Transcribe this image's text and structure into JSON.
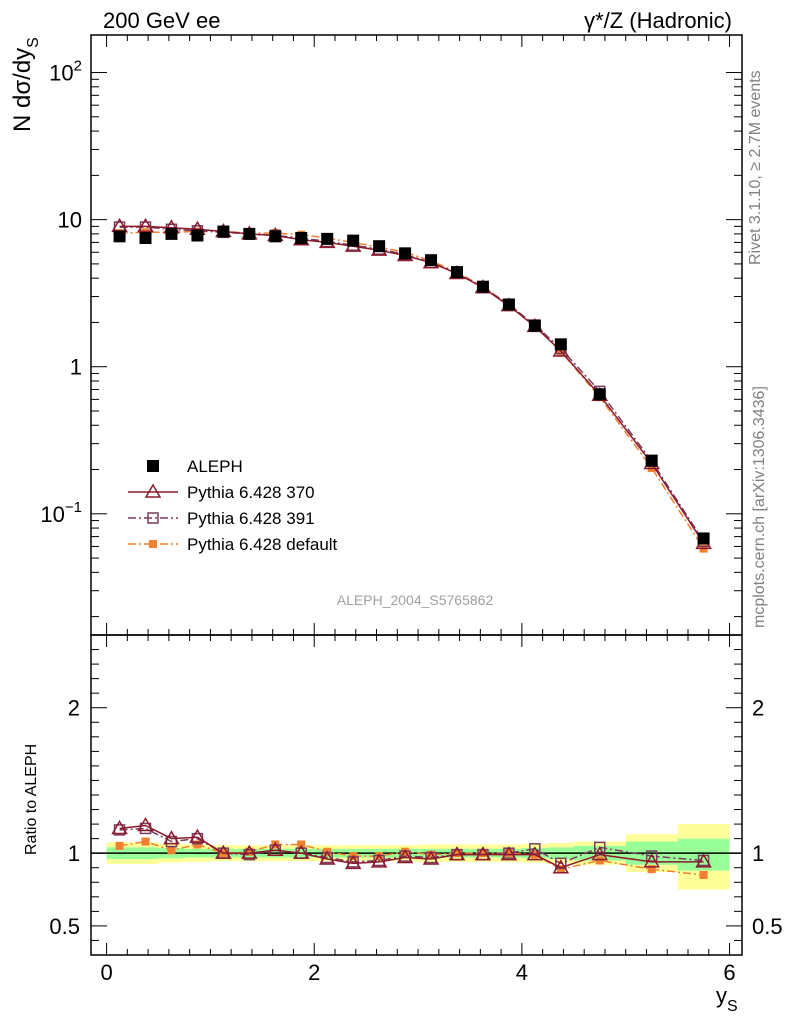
{
  "header": {
    "left_title": "200 GeV ee",
    "right_title": "γ*/Z (Hadronic)"
  },
  "side_labels": {
    "rivet": "Rivet 3.1.10, ≥ 2.7M events",
    "mcplots": "mcplots.cern.ch [arXiv:1306.3436]"
  },
  "watermark": "ALEPH_2004_S5765862",
  "chart_data": [
    {
      "type": "line",
      "panel": "main",
      "ylabel": "N dσ/dy_S",
      "yscale": "log",
      "xlim": [
        -0.15,
        6.12
      ],
      "ylim": [
        0.015,
        180
      ],
      "y_ticks": [
        {
          "value": 100,
          "base": "10",
          "exp": "2"
        },
        {
          "value": 10,
          "base": "10",
          "exp": ""
        },
        {
          "value": 1,
          "base": "1",
          "exp": ""
        },
        {
          "value": 0.1,
          "base": "10",
          "exp": "−1"
        }
      ],
      "legend_position": "bottom-left",
      "series": [
        {
          "name": "ALEPH",
          "color": "#000000",
          "marker": "filled-square",
          "line": "none",
          "x": [
            0.125,
            0.375,
            0.625,
            0.875,
            1.125,
            1.375,
            1.625,
            1.875,
            2.125,
            2.375,
            2.625,
            2.875,
            3.125,
            3.375,
            3.625,
            3.875,
            4.125,
            4.375,
            4.75,
            5.25,
            5.75
          ],
          "y": [
            7.7,
            7.5,
            8.0,
            7.8,
            8.3,
            8.0,
            7.7,
            7.5,
            7.4,
            7.2,
            6.6,
            5.9,
            5.3,
            4.4,
            3.5,
            2.65,
            1.9,
            1.42,
            0.65,
            0.23,
            0.068
          ]
        },
        {
          "name": "Pythia 6.428 370",
          "color": "#8b1a2e",
          "marker": "open-triangle",
          "line": "solid",
          "x": [
            0.125,
            0.375,
            0.625,
            0.875,
            1.125,
            1.375,
            1.625,
            1.875,
            2.125,
            2.375,
            2.625,
            2.875,
            3.125,
            3.375,
            3.625,
            3.875,
            4.125,
            4.375,
            4.75,
            5.25,
            5.75
          ],
          "y": [
            9.0,
            9.0,
            8.8,
            8.6,
            8.3,
            8.0,
            7.8,
            7.3,
            7.0,
            6.6,
            6.2,
            5.7,
            5.1,
            4.3,
            3.45,
            2.6,
            1.88,
            1.28,
            0.64,
            0.22,
            0.063
          ]
        },
        {
          "name": "Pythia 6.428 391",
          "color": "#7a3a5e",
          "marker": "open-square",
          "line": "dashdot",
          "x": [
            0.125,
            0.375,
            0.625,
            0.875,
            1.125,
            1.375,
            1.625,
            1.875,
            2.125,
            2.375,
            2.625,
            2.875,
            3.125,
            3.375,
            3.625,
            3.875,
            4.125,
            4.375,
            4.75,
            5.25,
            5.75
          ],
          "y": [
            8.9,
            8.9,
            8.6,
            8.4,
            8.2,
            8.0,
            7.8,
            7.5,
            7.1,
            6.7,
            6.3,
            5.8,
            5.1,
            4.35,
            3.45,
            2.65,
            1.92,
            1.33,
            0.68,
            0.228,
            0.065
          ]
        },
        {
          "name": "Pythia 6.428 default",
          "color": "#f07f30",
          "marker": "filled-small-square",
          "line": "dashdot",
          "x": [
            0.125,
            0.375,
            0.625,
            0.875,
            1.125,
            1.375,
            1.625,
            1.875,
            2.125,
            2.375,
            2.625,
            2.875,
            3.125,
            3.375,
            3.625,
            3.875,
            4.125,
            4.375,
            4.75,
            5.25,
            5.75
          ],
          "y": [
            8.1,
            8.2,
            8.2,
            8.3,
            8.3,
            8.1,
            8.1,
            7.9,
            7.5,
            7.0,
            6.5,
            6.0,
            5.25,
            4.4,
            3.5,
            2.65,
            1.9,
            1.27,
            0.62,
            0.205,
            0.058
          ]
        }
      ]
    },
    {
      "type": "line",
      "panel": "ratio",
      "xlabel": "y_S",
      "ylabel": "Ratio to ALEPH",
      "xlim": [
        -0.15,
        6.12
      ],
      "ylim": [
        0.3,
        2.5
      ],
      "x_ticks": [
        "0",
        "2",
        "4",
        "6"
      ],
      "y_ticks": [
        "0.5",
        "1",
        "2"
      ],
      "bands": {
        "edges": [
          0,
          0.25,
          0.5,
          0.75,
          1.0,
          1.25,
          1.5,
          1.75,
          2.0,
          2.25,
          2.5,
          2.75,
          3.0,
          3.25,
          3.5,
          3.75,
          4.0,
          4.25,
          4.5,
          5.0,
          5.5,
          6.0
        ],
        "inner": [
          [
            0.96,
            1.04
          ],
          [
            0.96,
            1.04
          ],
          [
            0.965,
            1.035
          ],
          [
            0.97,
            1.03
          ],
          [
            0.97,
            1.03
          ],
          [
            0.97,
            1.03
          ],
          [
            0.97,
            1.03
          ],
          [
            0.97,
            1.03
          ],
          [
            0.97,
            1.03
          ],
          [
            0.97,
            1.03
          ],
          [
            0.97,
            1.03
          ],
          [
            0.97,
            1.03
          ],
          [
            0.97,
            1.03
          ],
          [
            0.97,
            1.03
          ],
          [
            0.97,
            1.03
          ],
          [
            0.97,
            1.03
          ],
          [
            0.965,
            1.035
          ],
          [
            0.96,
            1.04
          ],
          [
            0.95,
            1.05
          ],
          [
            0.92,
            1.08
          ],
          [
            0.88,
            1.1
          ]
        ],
        "outer": [
          [
            0.925,
            1.075
          ],
          [
            0.925,
            1.075
          ],
          [
            0.935,
            1.065
          ],
          [
            0.94,
            1.06
          ],
          [
            0.945,
            1.055
          ],
          [
            0.945,
            1.055
          ],
          [
            0.945,
            1.055
          ],
          [
            0.945,
            1.055
          ],
          [
            0.945,
            1.055
          ],
          [
            0.945,
            1.055
          ],
          [
            0.945,
            1.055
          ],
          [
            0.945,
            1.055
          ],
          [
            0.94,
            1.06
          ],
          [
            0.94,
            1.06
          ],
          [
            0.94,
            1.06
          ],
          [
            0.94,
            1.06
          ],
          [
            0.935,
            1.065
          ],
          [
            0.93,
            1.07
          ],
          [
            0.92,
            1.08
          ],
          [
            0.87,
            1.13
          ],
          [
            0.75,
            1.2
          ]
        ],
        "inner_color": "#99ff99",
        "outer_color": "#ffff99"
      },
      "series": [
        {
          "name": "Pythia 6.428 370",
          "color": "#8b1a2e",
          "marker": "open-triangle",
          "line": "solid",
          "x": [
            0.125,
            0.375,
            0.625,
            0.875,
            1.125,
            1.375,
            1.625,
            1.875,
            2.125,
            2.375,
            2.625,
            2.875,
            3.125,
            3.375,
            3.625,
            3.875,
            4.125,
            4.375,
            4.75,
            5.25,
            5.75
          ],
          "y": [
            1.17,
            1.19,
            1.1,
            1.11,
            1.0,
            1.0,
            1.02,
            1.0,
            0.96,
            0.93,
            0.94,
            0.97,
            0.96,
            0.99,
            0.99,
            0.99,
            0.99,
            0.9,
            0.99,
            0.94,
            0.94
          ]
        },
        {
          "name": "Pythia 6.428 391",
          "color": "#7a3a5e",
          "marker": "open-square",
          "line": "dashdot",
          "x": [
            0.125,
            0.375,
            0.625,
            0.875,
            1.125,
            1.375,
            1.625,
            1.875,
            2.125,
            2.375,
            2.625,
            2.875,
            3.125,
            3.375,
            3.625,
            3.875,
            4.125,
            4.375,
            4.75,
            5.25,
            5.75
          ],
          "y": [
            1.16,
            1.17,
            1.08,
            1.1,
            1.0,
            0.99,
            1.02,
            1.0,
            0.97,
            0.94,
            0.95,
            0.98,
            0.97,
            0.99,
            0.99,
            1.0,
            1.03,
            0.93,
            1.04,
            0.98,
            0.95
          ]
        },
        {
          "name": "Pythia 6.428 default",
          "color": "#f07f30",
          "marker": "filled-small-square",
          "line": "dashdot",
          "x": [
            0.125,
            0.375,
            0.625,
            0.875,
            1.125,
            1.375,
            1.625,
            1.875,
            2.125,
            2.375,
            2.625,
            2.875,
            3.125,
            3.375,
            3.625,
            3.875,
            4.125,
            4.375,
            4.75,
            5.25,
            5.75
          ],
          "y": [
            1.05,
            1.08,
            1.02,
            1.06,
            1.0,
            1.01,
            1.06,
            1.06,
            1.01,
            0.98,
            0.98,
            1.01,
            0.99,
            1.0,
            1.0,
            1.0,
            0.99,
            0.89,
            0.95,
            0.89,
            0.85
          ]
        }
      ]
    }
  ]
}
